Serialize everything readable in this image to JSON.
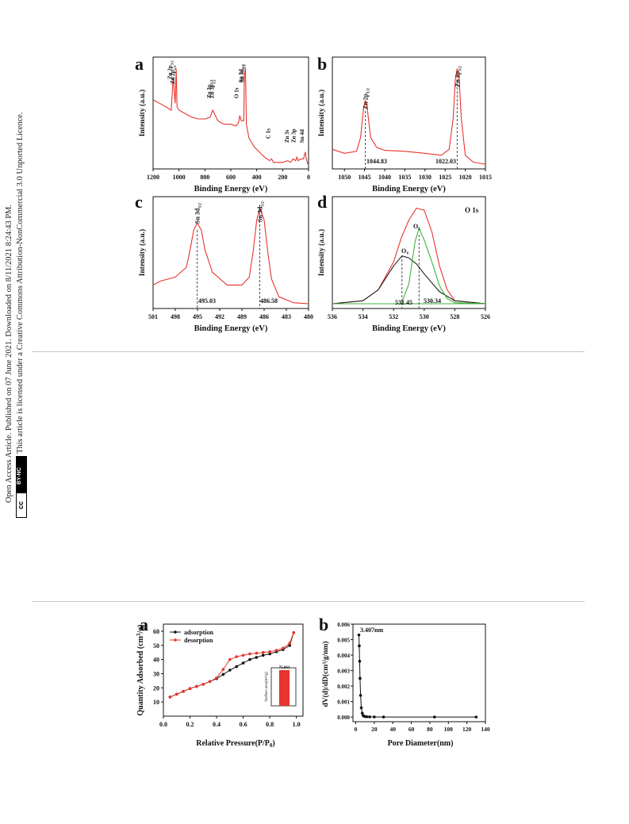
{
  "sidebar": {
    "line1": "Open Access Article. Published on 07 June 2021. Downloaded on 8/11/2021 8:24:43 PM.",
    "line2": "This article is licensed under a Creative Commons Attribution-NonCommercial 3.0 Unported Licence.",
    "badge_cc": "cc",
    "badge_bync": "BY-NC"
  },
  "figure1": {
    "colors": {
      "data": "#e8342e",
      "fit_green": "#3cb43c",
      "fit_black": "#222222",
      "axis": "#111111"
    },
    "panels": [
      {
        "letter": "a",
        "xlabel": "Binding Energy (eV)",
        "ylabel": "Intensity (a.u.)",
        "xticks": [
          "1200",
          "1000",
          "800",
          "600",
          "400",
          "200",
          "0"
        ],
        "peaks": [
          {
            "label": "Zn 2p",
            "sub": "3/2"
          },
          {
            "label": "Zn 2p",
            "sub": "1/2"
          },
          {
            "label": "Zn 3p",
            "sub": "1/2"
          },
          {
            "label": "Zn 3p",
            "sub": "3/2"
          },
          {
            "label": "O 1s",
            "sub": ""
          },
          {
            "label": "Sn 3d",
            "sub": "3/2"
          },
          {
            "label": "Sn 3d",
            "sub": "5/2"
          },
          {
            "label": "C 1s",
            "sub": ""
          },
          {
            "label": "Zn 3s",
            "sub": ""
          },
          {
            "label": "Zn 3p",
            "sub": ""
          },
          {
            "label": "Sn 4d",
            "sub": ""
          }
        ]
      },
      {
        "letter": "b",
        "xlabel": "Binding Energy (eV)",
        "ylabel": "Intensity (a.u.)",
        "xticks": [
          "1050",
          "1045",
          "1040",
          "1035",
          "1030",
          "1025",
          "1020",
          "1015"
        ],
        "peaks": [
          {
            "label": "Zn 2p",
            "sub": "1/2"
          },
          {
            "label": "Zn 2p",
            "sub": "3/2"
          }
        ],
        "values": [
          "1044.83",
          "1022.03"
        ]
      },
      {
        "letter": "c",
        "xlabel": "Binding Energy (eV)",
        "ylabel": "Intensity (a.u.)",
        "xticks": [
          "501",
          "498",
          "495",
          "492",
          "489",
          "486",
          "483",
          "480"
        ],
        "peaks": [
          {
            "label": "Sn 3d",
            "sub": "3/2"
          },
          {
            "label": "Sn 3d",
            "sub": "5/2"
          }
        ],
        "values": [
          "495.03",
          "486.58"
        ]
      },
      {
        "letter": "d",
        "xlabel": "Binding Energy (eV)",
        "ylabel": "Intensity (a.u.)",
        "xticks": [
          "536",
          "534",
          "532",
          "530",
          "528",
          "526"
        ],
        "title": "O 1s",
        "peaks": [
          {
            "label": "O",
            "sub": "V"
          },
          {
            "label": "O",
            "sub": "L"
          }
        ],
        "values": [
          "531.45",
          "530.34"
        ]
      }
    ]
  },
  "figure2": {
    "panel_a": {
      "letter": "a",
      "xlabel": "Relative Pressure(P/P",
      "xlabel_sub": "0",
      "xlabel_end": ")",
      "ylabel": "Quantity Adsorbed (cm",
      "ylabel_sup": "3",
      "ylabel_end": "/g)",
      "xticks": [
        "0.0",
        "0.2",
        "0.4",
        "0.6",
        "0.8",
        "1.0"
      ],
      "yticks": [
        "10",
        "20",
        "30",
        "40",
        "50",
        "60"
      ],
      "legend": [
        "adsorption",
        "desorption"
      ],
      "inset": {
        "ylabel": "Surface area(m²/g)",
        "value_label": "75.061"
      }
    },
    "panel_b": {
      "letter": "b",
      "xlabel": "Pore Diameter(nm)",
      "ylabel": "dV(d)/dD(cm³/g/nm)",
      "xticks": [
        "0",
        "20",
        "40",
        "60",
        "80",
        "100",
        "120",
        "140"
      ],
      "yticks": [
        "0.000",
        "0.001",
        "0.002",
        "0.003",
        "0.004",
        "0.005",
        "0.006"
      ],
      "annotation": "3.407nm"
    }
  },
  "chart_data": [
    {
      "type": "line",
      "panel": "1a",
      "xlabel": "Binding Energy (eV)",
      "ylabel": "Intensity (a.u.)",
      "xlim": [
        1200,
        0
      ],
      "x_reversed": true,
      "series": [
        {
          "x": [
            1200,
            1150,
            1100,
            1060,
            1045,
            1030,
            1022,
            1015,
            1000,
            950,
            900,
            850,
            800,
            760,
            740,
            720,
            700,
            680,
            650,
            600,
            560,
            540,
            531,
            520,
            500,
            495,
            487,
            480,
            460,
            420,
            380,
            340,
            300,
            285,
            270,
            240,
            200,
            160,
            140,
            120,
            100,
            90,
            80,
            60,
            40,
            25,
            20,
            10,
            5
          ],
          "y": [
            42,
            40,
            38,
            36,
            55,
            40,
            60,
            38,
            36,
            34,
            32,
            31,
            31,
            32,
            36,
            33,
            30,
            29,
            28,
            28,
            27,
            29,
            33,
            30,
            30,
            56,
            60,
            28,
            20,
            15,
            12,
            9,
            7,
            8,
            6,
            6,
            6,
            7,
            6,
            8,
            7,
            9,
            7,
            8,
            8,
            12,
            9,
            6,
            5
          ]
        }
      ]
    },
    {
      "type": "line",
      "panel": "1b",
      "xlabel": "Binding Energy (eV)",
      "ylabel": "Intensity (a.u.)",
      "xlim": [
        1053,
        1015
      ],
      "x_reversed": true,
      "series": [
        {
          "x": [
            1053,
            1050,
            1047,
            1046,
            1045.3,
            1044.83,
            1044.3,
            1043.5,
            1042,
            1040,
            1035,
            1030,
            1026,
            1024,
            1023,
            1022.5,
            1022.03,
            1021.5,
            1021,
            1020,
            1018,
            1015
          ],
          "y": [
            18,
            14,
            16,
            30,
            58,
            68,
            58,
            30,
            20,
            17,
            16,
            14,
            12,
            18,
            50,
            88,
            100,
            88,
            50,
            12,
            5,
            3
          ]
        }
      ]
    },
    {
      "type": "line",
      "panel": "1c",
      "xlabel": "Binding Energy (eV)",
      "ylabel": "Intensity (a.u.)",
      "xlim": [
        501,
        480
      ],
      "x_reversed": true,
      "series": [
        {
          "x": [
            501,
            500,
            498,
            496.5,
            496,
            495.5,
            495.03,
            494.5,
            494,
            493,
            491,
            489,
            488,
            487.5,
            487,
            486.58,
            486,
            485.5,
            485,
            484,
            482,
            480
          ],
          "y": [
            22,
            26,
            30,
            40,
            58,
            78,
            85,
            78,
            58,
            35,
            22,
            22,
            30,
            55,
            88,
            100,
            88,
            55,
            28,
            10,
            4,
            3
          ]
        }
      ]
    },
    {
      "type": "line",
      "panel": "1d",
      "title": "O 1s",
      "xlabel": "Binding Energy (eV)",
      "ylabel": "Intensity (a.u.)",
      "xlim": [
        536,
        526
      ],
      "x_reversed": true,
      "series": [
        {
          "name": "envelope",
          "x": [
            536,
            534,
            533,
            532,
            531.5,
            531,
            530.5,
            530,
            529.5,
            529,
            528.5,
            528,
            526
          ],
          "y": [
            0,
            3,
            14,
            42,
            66,
            84,
            96,
            94,
            72,
            38,
            14,
            3,
            0
          ]
        },
        {
          "name": "O_V",
          "x": [
            536,
            534,
            533,
            532,
            531.45,
            531,
            530.5,
            530,
            529,
            528,
            526
          ],
          "y": [
            0,
            3,
            14,
            38,
            48,
            46,
            40,
            30,
            12,
            3,
            0
          ]
        },
        {
          "name": "O_L",
          "x": [
            536,
            531.5,
            531,
            530.6,
            530.34,
            530,
            529.5,
            529,
            528.5,
            528,
            526
          ],
          "y": [
            0,
            0,
            20,
            62,
            76,
            64,
            42,
            18,
            5,
            1,
            0
          ]
        }
      ]
    },
    {
      "type": "line",
      "panel": "2a",
      "xlabel": "Relative Pressure(P/P0)",
      "ylabel": "Quantity Adsorbed (cm3/g)",
      "xlim": [
        0.0,
        1.05
      ],
      "ylim": [
        0,
        65
      ],
      "series": [
        {
          "name": "adsorption",
          "x": [
            0.05,
            0.1,
            0.15,
            0.2,
            0.25,
            0.3,
            0.35,
            0.4,
            0.45,
            0.5,
            0.55,
            0.6,
            0.65,
            0.7,
            0.75,
            0.8,
            0.85,
            0.9,
            0.95,
            0.98
          ],
          "y": [
            13.5,
            15.5,
            17.5,
            19.5,
            21,
            22.5,
            24.5,
            26.5,
            29.5,
            32.5,
            35,
            37.5,
            40,
            41.5,
            43,
            44,
            45.5,
            47,
            50,
            59
          ]
        },
        {
          "name": "desorption",
          "x": [
            0.98,
            0.95,
            0.9,
            0.85,
            0.8,
            0.75,
            0.7,
            0.65,
            0.6,
            0.55,
            0.5,
            0.45,
            0.4,
            0.35,
            0.3,
            0.25,
            0.2,
            0.15,
            0.1,
            0.05
          ],
          "y": [
            59,
            51.5,
            48,
            46.5,
            45.5,
            45,
            44.5,
            44,
            43,
            42,
            40,
            33,
            27,
            24.5,
            22.5,
            21,
            19.5,
            17.5,
            15.5,
            13.5
          ]
        }
      ],
      "inset": {
        "type": "bar",
        "categories": [
          ""
        ],
        "values": [
          75.061
        ],
        "ylim": [
          0,
          80
        ]
      }
    },
    {
      "type": "line",
      "panel": "2b",
      "xlabel": "Pore Diameter(nm)",
      "ylabel": "dV(d)/dD(cm3/g/nm)",
      "xlim": [
        -3,
        140
      ],
      "ylim": [
        -0.0003,
        0.006
      ],
      "series": [
        {
          "x": [
            3.407,
            3.8,
            4.2,
            4.6,
            5.2,
            6,
            7,
            8,
            9,
            10,
            12,
            15,
            20,
            30,
            85,
            130
          ],
          "y": [
            0.0053,
            0.0046,
            0.0036,
            0.0025,
            0.0014,
            0.0006,
            0.00025,
            0.0001,
            5e-05,
            3e-05,
            2e-05,
            1e-05,
            5e-06,
            3e-06,
            2e-06,
            1e-06
          ]
        }
      ]
    }
  ]
}
